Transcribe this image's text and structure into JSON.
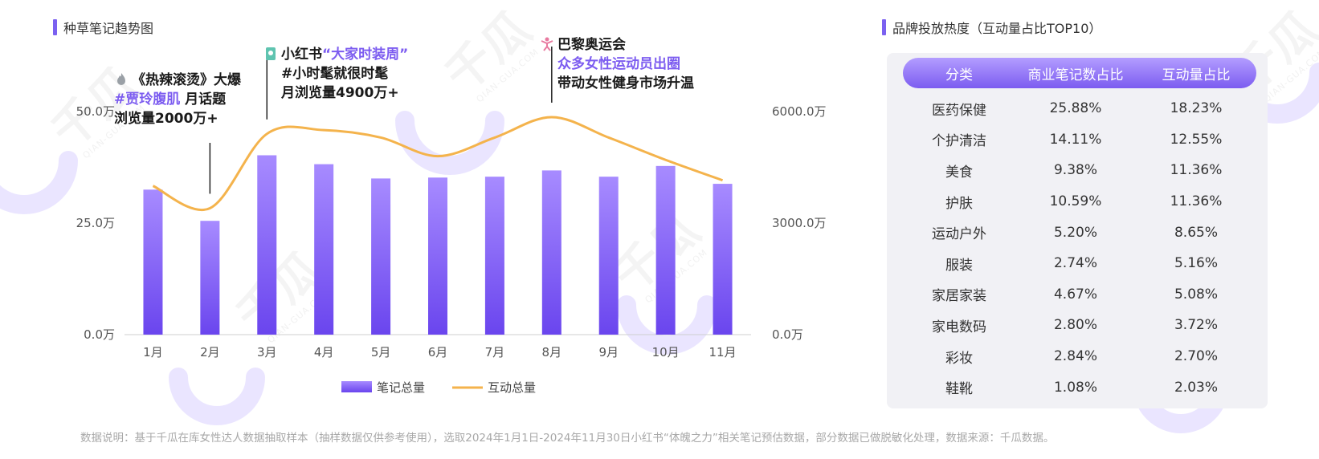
{
  "left_title": "种草笔记趋势图",
  "right_title": "品牌投放热度（互动量占比TOP10）",
  "colors": {
    "accent": "#7c5cf0",
    "bar_top": "#a78bff",
    "bar_bottom": "#6a45ee",
    "line": "#f4b34c",
    "table_head": "#8d6ff5"
  },
  "annotations": {
    "a1": {
      "icon": "flame-icon",
      "line1": "《热辣滚烫》大爆",
      "line2_hl": "#贾玲腹肌",
      "line2_rest": "月话题",
      "line3": "浏览量2000万+"
    },
    "a2": {
      "icon": "phone-icon",
      "line1_pre": "小红书",
      "line1_hl": "“大家时装周”",
      "line2": "#小时髦就很时髦",
      "line3": "月浏览量4900万+"
    },
    "a3": {
      "icon": "athlete-icon",
      "line1": "巴黎奥运会",
      "line2_hl": "众多女性运动员出圈",
      "line3": "带动女性健身市场升温"
    }
  },
  "chart_data": {
    "type": "bar+line",
    "categories": [
      "1月",
      "2月",
      "3月",
      "4月",
      "5月",
      "6月",
      "7月",
      "8月",
      "9月",
      "10月",
      "11月"
    ],
    "series": [
      {
        "name": "笔记总量",
        "type": "bar",
        "axis": "left",
        "values": [
          32.5,
          25.5,
          40.2,
          38.2,
          35.0,
          35.2,
          35.4,
          36.8,
          35.4,
          37.8,
          33.8
        ]
      },
      {
        "name": "互动总量",
        "type": "line",
        "axis": "right",
        "values": [
          4000,
          3400,
          5400,
          5500,
          5300,
          4800,
          5300,
          5850,
          5300,
          4700,
          4150
        ]
      }
    ],
    "left_axis": {
      "ticks": [
        "0.0万",
        "25.0万",
        "50.0万"
      ],
      "range": [
        0,
        50
      ]
    },
    "right_axis": {
      "ticks": [
        "0.0万",
        "3000.0万",
        "6000.0万"
      ],
      "range": [
        0,
        6000
      ]
    },
    "legend": [
      {
        "label": "笔记总量"
      },
      {
        "label": "互动总量"
      }
    ],
    "legend_position": "bottom"
  },
  "table": {
    "headers": [
      "分类",
      "商业笔记数占比",
      "互动量占比"
    ],
    "rows": [
      [
        "医药保健",
        "25.88%",
        "18.23%"
      ],
      [
        "个护清洁",
        "14.11%",
        "12.55%"
      ],
      [
        "美食",
        "9.38%",
        "11.36%"
      ],
      [
        "护肤",
        "10.59%",
        "11.36%"
      ],
      [
        "运动户外",
        "5.20%",
        "8.65%"
      ],
      [
        "服装",
        "2.74%",
        "5.16%"
      ],
      [
        "家居家装",
        "4.67%",
        "5.08%"
      ],
      [
        "家电数码",
        "2.80%",
        "3.72%"
      ],
      [
        "彩妆",
        "2.84%",
        "2.70%"
      ],
      [
        "鞋靴",
        "1.08%",
        "2.03%"
      ]
    ]
  },
  "watermark": {
    "text": "千瓜",
    "sub": "QIAN-GUA.COM"
  },
  "footnote": "数据说明：基于千瓜在库女性达人数据抽取样本（抽样数据仅供参考使用），选取2024年1月1日-2024年11月30日小红书“体魄之力”相关笔记预估数据，部分数据已做脱敏化处理，数据来源：千瓜数据。"
}
